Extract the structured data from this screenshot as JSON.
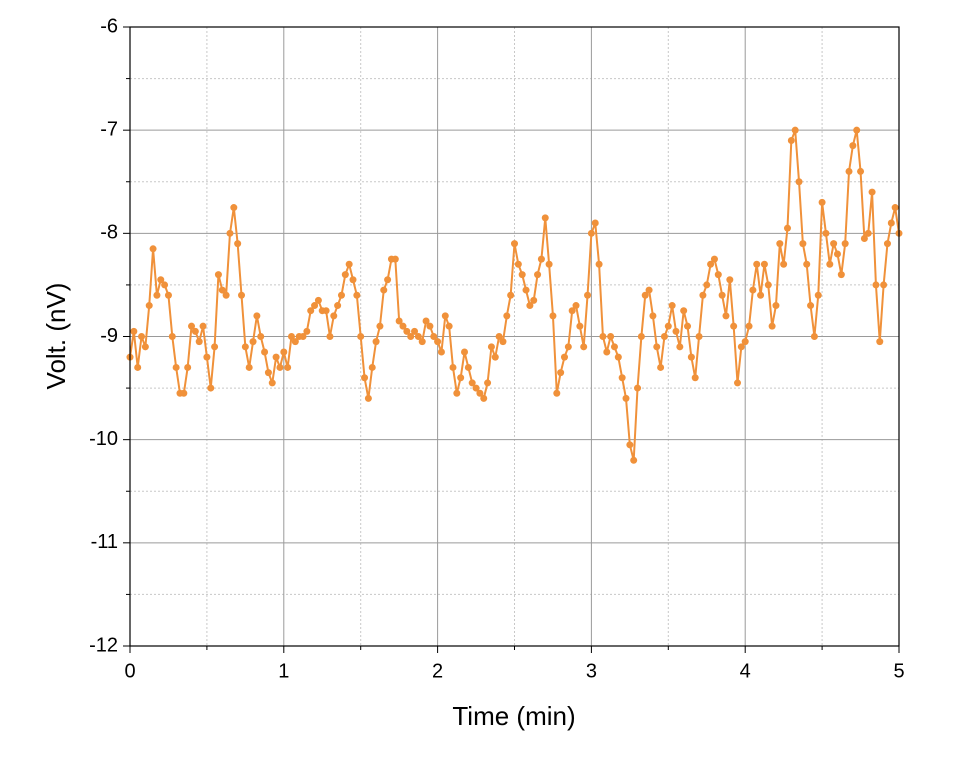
{
  "chart_data": {
    "type": "line",
    "x_label": "Time (min)",
    "y_label": "Volt. (nV)",
    "xlim": [
      0,
      5
    ],
    "xticks": [
      0,
      1,
      2,
      3,
      4,
      5
    ],
    "ylim": [
      -12,
      -6
    ],
    "yticks": [
      -12,
      -11,
      -10,
      -9,
      -8,
      -7,
      -6
    ],
    "grid": true,
    "x": [
      0,
      0.025,
      0.05,
      0.075,
      0.1,
      0.125,
      0.15,
      0.175,
      0.2,
      0.225,
      0.25,
      0.275,
      0.3,
      0.325,
      0.35,
      0.375,
      0.4,
      0.425,
      0.45,
      0.475,
      0.5,
      0.525,
      0.55,
      0.575,
      0.6,
      0.625,
      0.65,
      0.675,
      0.7,
      0.725,
      0.75,
      0.775,
      0.8,
      0.825,
      0.85,
      0.875,
      0.9,
      0.925,
      0.95,
      0.975,
      1,
      1.025,
      1.05,
      1.075,
      1.1,
      1.125,
      1.15,
      1.175,
      1.2,
      1.225,
      1.25,
      1.275,
      1.3,
      1.325,
      1.35,
      1.375,
      1.4,
      1.425,
      1.45,
      1.475,
      1.5,
      1.525,
      1.55,
      1.575,
      1.6,
      1.625,
      1.65,
      1.675,
      1.7,
      1.725,
      1.75,
      1.775,
      1.8,
      1.825,
      1.85,
      1.875,
      1.9,
      1.925,
      1.95,
      1.975,
      2,
      2.025,
      2.05,
      2.075,
      2.1,
      2.125,
      2.15,
      2.175,
      2.2,
      2.225,
      2.25,
      2.275,
      2.3,
      2.325,
      2.35,
      2.375,
      2.4,
      2.425,
      2.45,
      2.475,
      2.5,
      2.525,
      2.55,
      2.575,
      2.6,
      2.625,
      2.65,
      2.675,
      2.7,
      2.725,
      2.75,
      2.775,
      2.8,
      2.825,
      2.85,
      2.875,
      2.9,
      2.925,
      2.95,
      2.975,
      3,
      3.025,
      3.05,
      3.075,
      3.1,
      3.125,
      3.15,
      3.175,
      3.2,
      3.225,
      3.25,
      3.275,
      3.3,
      3.325,
      3.35,
      3.375,
      3.4,
      3.425,
      3.45,
      3.475,
      3.5,
      3.525,
      3.55,
      3.575,
      3.6,
      3.625,
      3.65,
      3.675,
      3.7,
      3.725,
      3.75,
      3.775,
      3.8,
      3.825,
      3.85,
      3.875,
      3.9,
      3.925,
      3.95,
      3.975,
      4,
      4.025,
      4.05,
      4.075,
      4.1,
      4.125,
      4.15,
      4.175,
      4.2,
      4.225,
      4.25,
      4.275,
      4.3,
      4.325,
      4.35,
      4.375,
      4.4,
      4.425,
      4.45,
      4.475,
      4.5,
      4.525,
      4.55,
      4.575,
      4.6,
      4.625,
      4.65,
      4.675,
      4.7,
      4.725,
      4.75,
      4.775,
      4.8,
      4.825,
      4.85,
      4.875,
      4.9,
      4.925,
      4.95,
      4.975,
      5
    ],
    "series": [
      {
        "color": "#f0913a",
        "values": [
          -9.2,
          -8.95,
          -9.3,
          -9.0,
          -9.1,
          -8.7,
          -8.15,
          -8.6,
          -8.45,
          -8.5,
          -8.6,
          -9.0,
          -9.3,
          -9.55,
          -9.55,
          -9.3,
          -8.9,
          -8.95,
          -9.05,
          -8.9,
          -9.2,
          -9.5,
          -9.1,
          -8.4,
          -8.55,
          -8.6,
          -8.0,
          -7.75,
          -8.1,
          -8.6,
          -9.1,
          -9.3,
          -9.05,
          -8.8,
          -9.0,
          -9.15,
          -9.35,
          -9.45,
          -9.2,
          -9.3,
          -9.15,
          -9.3,
          -9.0,
          -9.05,
          -9.0,
          -9.0,
          -8.95,
          -8.75,
          -8.7,
          -8.65,
          -8.75,
          -8.75,
          -9.0,
          -8.8,
          -8.7,
          -8.6,
          -8.4,
          -8.3,
          -8.45,
          -8.6,
          -9.0,
          -9.4,
          -9.6,
          -9.3,
          -9.05,
          -8.9,
          -8.55,
          -8.45,
          -8.25,
          -8.25,
          -8.85,
          -8.9,
          -8.95,
          -9.0,
          -8.95,
          -9.0,
          -9.05,
          -8.85,
          -8.9,
          -9.0,
          -9.05,
          -9.15,
          -8.8,
          -8.9,
          -9.3,
          -9.55,
          -9.4,
          -9.15,
          -9.3,
          -9.45,
          -9.5,
          -9.55,
          -9.6,
          -9.45,
          -9.1,
          -9.2,
          -9.0,
          -9.05,
          -8.8,
          -8.6,
          -8.1,
          -8.3,
          -8.4,
          -8.55,
          -8.7,
          -8.65,
          -8.4,
          -8.25,
          -7.85,
          -8.3,
          -8.8,
          -9.55,
          -9.35,
          -9.2,
          -9.1,
          -8.75,
          -8.7,
          -8.9,
          -9.1,
          -8.6,
          -8.0,
          -7.9,
          -8.3,
          -9.0,
          -9.15,
          -9.0,
          -9.1,
          -9.2,
          -9.4,
          -9.6,
          -10.05,
          -10.2,
          -9.5,
          -9.0,
          -8.6,
          -8.55,
          -8.8,
          -9.1,
          -9.3,
          -9.0,
          -8.9,
          -8.7,
          -8.95,
          -9.1,
          -8.75,
          -8.9,
          -9.2,
          -9.4,
          -9.0,
          -8.6,
          -8.5,
          -8.3,
          -8.25,
          -8.4,
          -8.6,
          -8.8,
          -8.45,
          -8.9,
          -9.45,
          -9.1,
          -9.05,
          -8.9,
          -8.55,
          -8.3,
          -8.6,
          -8.3,
          -8.5,
          -8.9,
          -8.7,
          -8.1,
          -8.3,
          -7.95,
          -7.1,
          -7.0,
          -7.5,
          -8.1,
          -8.3,
          -8.7,
          -9.0,
          -8.6,
          -7.7,
          -8.0,
          -8.3,
          -8.1,
          -8.2,
          -8.4,
          -8.1,
          -7.4,
          -7.15,
          -7.0,
          -7.4,
          -8.05,
          -8.0,
          -7.6,
          -8.5,
          -9.05,
          -8.5,
          -8.1,
          -7.9,
          -7.75,
          -8.0
        ]
      }
    ]
  }
}
